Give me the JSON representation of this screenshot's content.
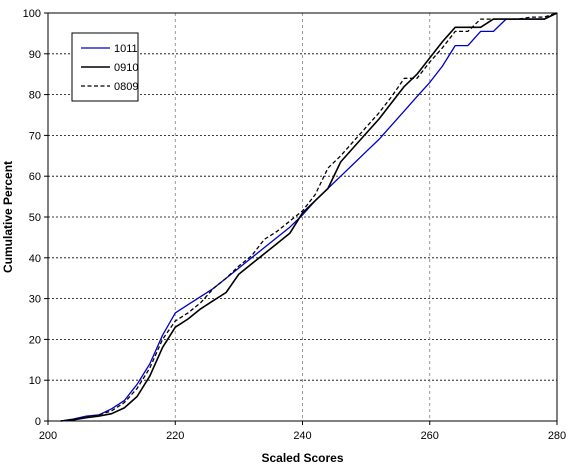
{
  "chart_data": {
    "type": "line",
    "title": "",
    "xlabel": "Scaled Scores",
    "ylabel": "Cumulative Percent",
    "xlim": [
      200,
      280
    ],
    "ylim": [
      0,
      100
    ],
    "xticks": [
      200,
      220,
      240,
      260,
      280
    ],
    "yticks": [
      0,
      10,
      20,
      30,
      40,
      50,
      60,
      70,
      80,
      90,
      100
    ],
    "grid": "dashed",
    "legend_position": "top-left",
    "series": [
      {
        "name": "1011",
        "color": "#0000cc",
        "dash": "solid",
        "x": [
          202,
          204,
          206,
          208,
          210,
          212,
          214,
          216,
          218,
          220,
          222,
          224,
          226,
          228,
          230,
          232,
          234,
          236,
          238,
          240,
          242,
          244,
          246,
          248,
          250,
          252,
          254,
          256,
          258,
          260,
          262,
          264,
          266,
          268,
          270,
          272,
          274,
          276,
          278,
          280
        ],
        "y": [
          0,
          0.5,
          1.2,
          1.5,
          3,
          5,
          9,
          14,
          21,
          26.5,
          28.5,
          30.5,
          32.5,
          35,
          37.5,
          40,
          42.5,
          45,
          47.5,
          50.5,
          54,
          57,
          60,
          63,
          66,
          69,
          72.5,
          76,
          79.5,
          83,
          87,
          92,
          92,
          95.5,
          95.5,
          98.5,
          98.5,
          98.5,
          98.5,
          100
        ]
      },
      {
        "name": "0910",
        "color": "#000000",
        "dash": "solid",
        "x": [
          202,
          204,
          206,
          208,
          210,
          212,
          214,
          216,
          218,
          220,
          222,
          224,
          226,
          228,
          230,
          232,
          234,
          236,
          238,
          240,
          242,
          244,
          246,
          248,
          250,
          252,
          254,
          256,
          258,
          260,
          262,
          264,
          266,
          268,
          270,
          272,
          274,
          276,
          278,
          280
        ],
        "y": [
          0,
          0.3,
          0.8,
          1.2,
          1.8,
          3.2,
          6,
          11,
          18,
          23,
          25,
          27.5,
          29.5,
          31.5,
          36,
          38.5,
          41,
          43.5,
          46,
          51,
          54,
          57,
          63.5,
          67,
          70.5,
          74,
          78,
          82,
          85,
          89,
          93,
          96.5,
          96.5,
          96.5,
          98.5,
          98.5,
          98.5,
          98.5,
          98.5,
          100
        ]
      },
      {
        "name": "0809",
        "color": "#000000",
        "dash": "dashed",
        "x": [
          202,
          204,
          206,
          208,
          210,
          212,
          214,
          216,
          218,
          220,
          222,
          224,
          226,
          228,
          230,
          232,
          234,
          236,
          238,
          240,
          242,
          244,
          246,
          248,
          250,
          252,
          254,
          256,
          258,
          260,
          262,
          264,
          266,
          268,
          270,
          272,
          274,
          276,
          278,
          280
        ],
        "y": [
          0,
          0.4,
          1,
          1.5,
          2.5,
          4.5,
          8,
          13,
          20,
          24.5,
          26.5,
          29,
          32.5,
          35,
          38,
          40.5,
          44.5,
          46.5,
          49,
          51.5,
          55.5,
          62,
          65,
          68.5,
          72,
          75.5,
          79.5,
          84,
          84,
          88,
          91.5,
          95.5,
          95.5,
          98.5,
          98.5,
          98.5,
          98.5,
          99,
          99,
          100
        ]
      }
    ]
  }
}
